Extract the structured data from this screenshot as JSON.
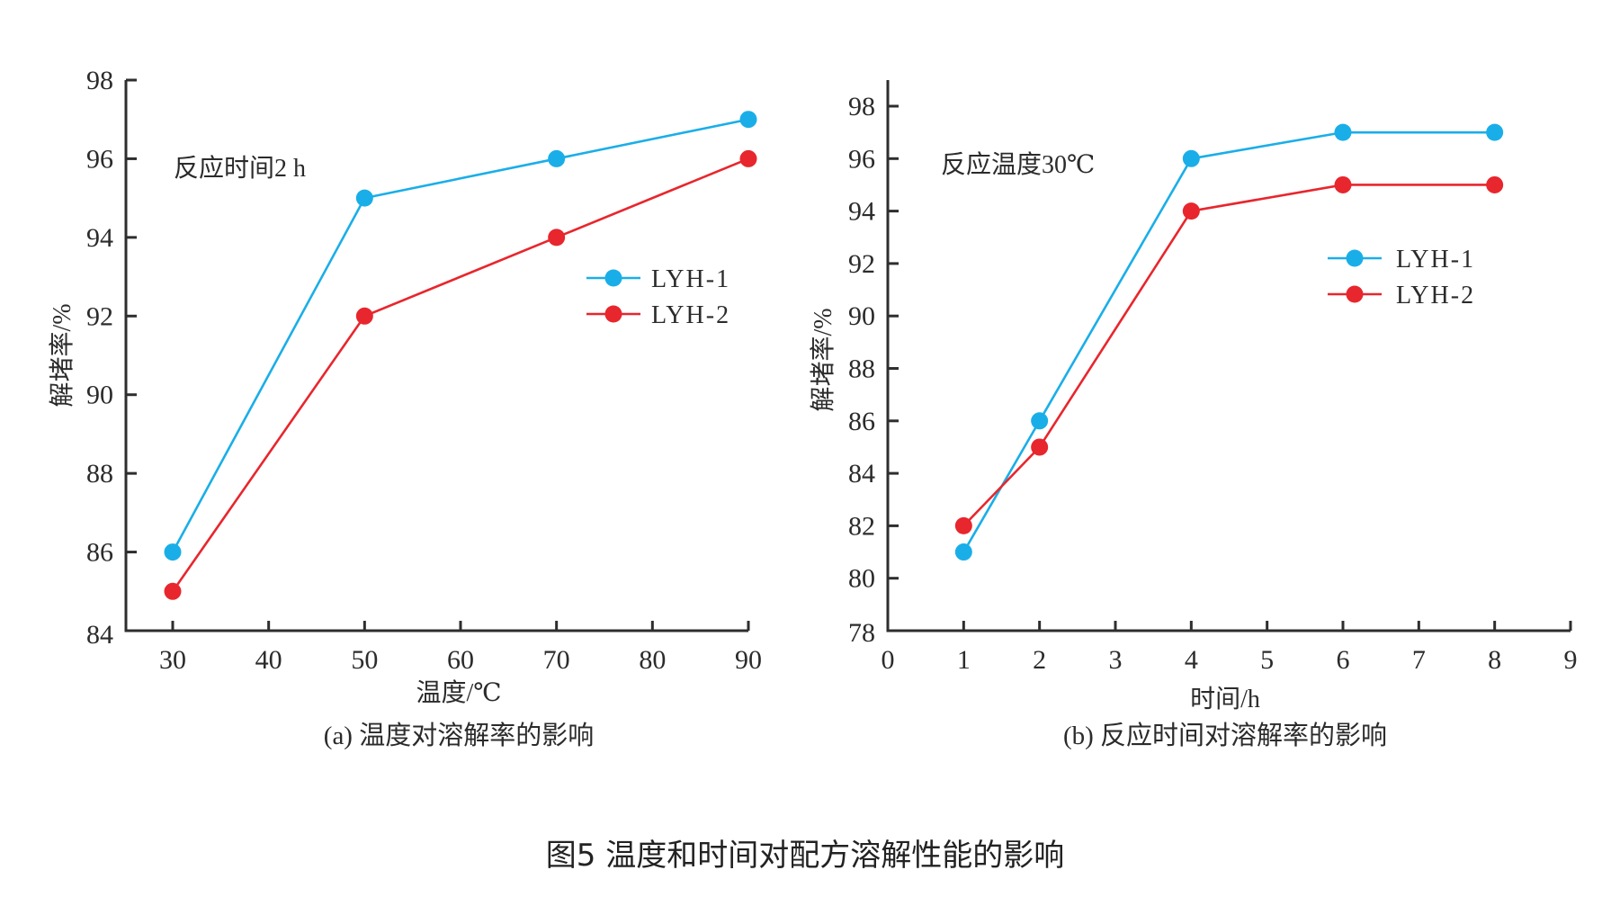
{
  "figure_title": "图5  温度和时间对配方溶解性能的影响",
  "chart_data": [
    {
      "type": "line",
      "id": "a",
      "caption": "(a) 温度对溶解率的影响",
      "annotation": "反应时间2 h",
      "xlabel": "温度/℃",
      "ylabel": "解堵率/%",
      "xlim": [
        25,
        90
      ],
      "ylim": [
        84,
        98
      ],
      "x_ticks": [
        30,
        40,
        50,
        60,
        70,
        80,
        90
      ],
      "y_ticks": [
        84,
        86,
        88,
        90,
        92,
        94,
        96,
        98
      ],
      "x_tick_labels": [
        "30",
        "40",
        "50",
        "60",
        "70",
        "80",
        "90"
      ],
      "y_tick_labels": [
        "84",
        "86",
        "88",
        "90",
        "92",
        "94",
        "96",
        "98"
      ],
      "legend_position": "right",
      "grid": false,
      "x": [
        30,
        50,
        70,
        90
      ],
      "series": [
        {
          "name": "LYH-1",
          "color": "#1aaee8",
          "values": [
            86,
            95,
            96,
            97
          ]
        },
        {
          "name": "LYH-2",
          "color": "#e8262d",
          "values": [
            85,
            92,
            94,
            96
          ]
        }
      ]
    },
    {
      "type": "line",
      "id": "b",
      "caption": "(b) 反应时间对溶解率的影响",
      "annotation": "反应温度30℃",
      "xlabel": "时间/h",
      "ylabel": "解堵率/%",
      "xlim": [
        0,
        9
      ],
      "ylim": [
        78,
        99
      ],
      "x_ticks": [
        0,
        1,
        2,
        3,
        4,
        5,
        6,
        7,
        8,
        9
      ],
      "y_ticks": [
        78,
        80,
        82,
        84,
        86,
        88,
        90,
        92,
        94,
        96,
        98
      ],
      "x_tick_labels": [
        "0",
        "1",
        "2",
        "3",
        "4",
        "5",
        "6",
        "7",
        "8",
        "9"
      ],
      "y_tick_labels": [
        "78",
        "80",
        "82",
        "84",
        "86",
        "88",
        "90",
        "92",
        "94",
        "96",
        "98"
      ],
      "legend_position": "right",
      "grid": false,
      "x": [
        1,
        2,
        4,
        6,
        8
      ],
      "series": [
        {
          "name": "LYH-1",
          "color": "#1aaee8",
          "values": [
            81,
            86,
            96,
            97,
            97
          ]
        },
        {
          "name": "LYH-2",
          "color": "#e8262d",
          "values": [
            82,
            85,
            94,
            95,
            95
          ]
        }
      ]
    }
  ]
}
